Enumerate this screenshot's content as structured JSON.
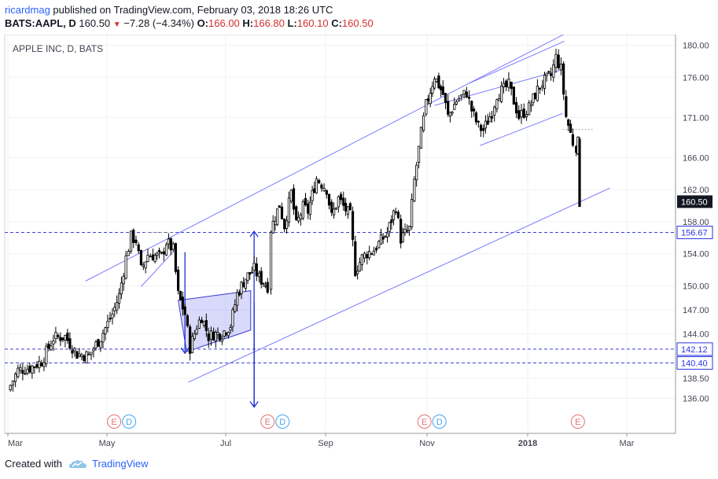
{
  "header": {
    "author": "ricardmag",
    "published": " published on TradingView.com, February 03, 2018 18:26 UTC",
    "symbol": "BATS:AAPL, D",
    "last": "160.50",
    "change": "−7.28 (−4.34%)",
    "o_label": "O:",
    "o_value": "166.00",
    "h_label": "H:",
    "h_value": "166.80",
    "l_label": "L:",
    "l_value": "160.10",
    "c_label": "C:",
    "c_value": "160.50"
  },
  "footer": {
    "created_with": "Created with",
    "brand": "TradingView",
    "logo_icon": "tradingview-cloud-icon"
  },
  "colors": {
    "accent": "#2962ff",
    "down": "#d32f2f",
    "candle": "#000000",
    "channel": "#7b7bff",
    "level": "#3f3fd8",
    "event_e": "#e57373",
    "event_d": "#42a5f5"
  },
  "chart_data": {
    "type": "candlestick",
    "title": "APPLE INC, D, BATS",
    "x_labels": [
      "Mar",
      "May",
      "Jul",
      "Sep",
      "Nov",
      "2018",
      "Mar"
    ],
    "y_ticks": [
      136,
      138.5,
      140.4,
      144,
      147,
      150,
      154,
      158,
      162,
      166,
      171,
      176,
      180
    ],
    "ylim": [
      134,
      182
    ],
    "price_labels": [
      {
        "value": "160.50",
        "style": "dark"
      },
      {
        "value": "156.67",
        "style": "blue"
      },
      {
        "value": "142.12",
        "style": "blue"
      },
      {
        "value": "140.40",
        "style": "blue"
      }
    ],
    "horizontal_levels": [
      156.67,
      142.12,
      140.4
    ],
    "events": [
      {
        "date": "2017-05-02",
        "kinds": [
          "E",
          "D"
        ]
      },
      {
        "date": "2017-08-01",
        "kinds": [
          "E",
          "D"
        ]
      },
      {
        "date": "2017-11-02",
        "kinds": [
          "E",
          "D"
        ]
      },
      {
        "date": "2018-02-01",
        "kinds": [
          "E"
        ]
      }
    ],
    "close_points": [
      [
        "2017-02-28",
        137.0
      ],
      [
        "2017-03-06",
        139.5
      ],
      [
        "2017-03-13",
        139.8
      ],
      [
        "2017-03-20",
        140.6
      ],
      [
        "2017-03-27",
        143.5
      ],
      [
        "2017-04-03",
        143.7
      ],
      [
        "2017-04-10",
        141.5
      ],
      [
        "2017-04-17",
        141.3
      ],
      [
        "2017-04-24",
        143.6
      ],
      [
        "2017-05-01",
        146.5
      ],
      [
        "2017-05-05",
        148.8
      ],
      [
        "2017-05-09",
        153.5
      ],
      [
        "2017-05-12",
        156.1
      ],
      [
        "2017-05-15",
        155.7
      ],
      [
        "2017-05-18",
        152.0
      ],
      [
        "2017-05-22",
        153.9
      ],
      [
        "2017-05-25",
        153.8
      ],
      [
        "2017-05-30",
        153.6
      ],
      [
        "2017-06-02",
        155.5
      ],
      [
        "2017-06-06",
        154.5
      ],
      [
        "2017-06-09",
        148.9
      ],
      [
        "2017-06-13",
        146.5
      ],
      [
        "2017-06-16",
        142.3
      ],
      [
        "2017-06-20",
        145.0
      ],
      [
        "2017-06-23",
        146.2
      ],
      [
        "2017-06-27",
        143.7
      ],
      [
        "2017-06-30",
        144.0
      ],
      [
        "2017-07-05",
        144.1
      ],
      [
        "2017-07-10",
        145.1
      ],
      [
        "2017-07-14",
        149.0
      ],
      [
        "2017-07-19",
        151.0
      ],
      [
        "2017-07-24",
        152.1
      ],
      [
        "2017-07-27",
        151.0
      ],
      [
        "2017-08-01",
        150.0
      ],
      [
        "2017-08-03",
        157.1
      ],
      [
        "2017-08-08",
        160.1
      ],
      [
        "2017-08-11",
        157.5
      ],
      [
        "2017-08-15",
        161.6
      ],
      [
        "2017-08-18",
        157.5
      ],
      [
        "2017-08-22",
        159.8
      ],
      [
        "2017-08-25",
        159.3
      ],
      [
        "2017-08-30",
        163.4
      ],
      [
        "2017-09-05",
        162.1
      ],
      [
        "2017-09-08",
        158.6
      ],
      [
        "2017-09-12",
        160.9
      ],
      [
        "2017-09-15",
        159.9
      ],
      [
        "2017-09-19",
        158.7
      ],
      [
        "2017-09-22",
        151.9
      ],
      [
        "2017-09-26",
        153.5
      ],
      [
        "2017-09-29",
        154.1
      ],
      [
        "2017-10-03",
        154.5
      ],
      [
        "2017-10-06",
        155.3
      ],
      [
        "2017-10-11",
        156.6
      ],
      [
        "2017-10-16",
        159.9
      ],
      [
        "2017-10-19",
        155.9
      ],
      [
        "2017-10-24",
        157.1
      ],
      [
        "2017-10-27",
        163.1
      ],
      [
        "2017-10-31",
        169.0
      ],
      [
        "2017-11-03",
        172.5
      ],
      [
        "2017-11-08",
        176.2
      ],
      [
        "2017-11-13",
        173.9
      ],
      [
        "2017-11-16",
        171.1
      ],
      [
        "2017-11-21",
        173.1
      ],
      [
        "2017-11-27",
        174.1
      ],
      [
        "2017-11-30",
        171.9
      ],
      [
        "2017-12-04",
        169.8
      ],
      [
        "2017-12-07",
        169.4
      ],
      [
        "2017-12-12",
        171.7
      ],
      [
        "2017-12-15",
        173.9
      ],
      [
        "2017-12-19",
        174.5
      ],
      [
        "2017-12-22",
        175.0
      ],
      [
        "2017-12-28",
        171.1
      ],
      [
        "2018-01-03",
        172.2
      ],
      [
        "2018-01-08",
        174.4
      ],
      [
        "2018-01-11",
        175.3
      ],
      [
        "2018-01-16",
        176.2
      ],
      [
        "2018-01-19",
        178.5
      ],
      [
        "2018-01-22",
        177.0
      ],
      [
        "2018-01-25",
        171.1
      ],
      [
        "2018-01-29",
        167.9
      ],
      [
        "2018-01-31",
        167.4
      ],
      [
        "2018-02-01",
        167.8
      ],
      [
        "2018-02-02",
        160.5
      ]
    ]
  }
}
